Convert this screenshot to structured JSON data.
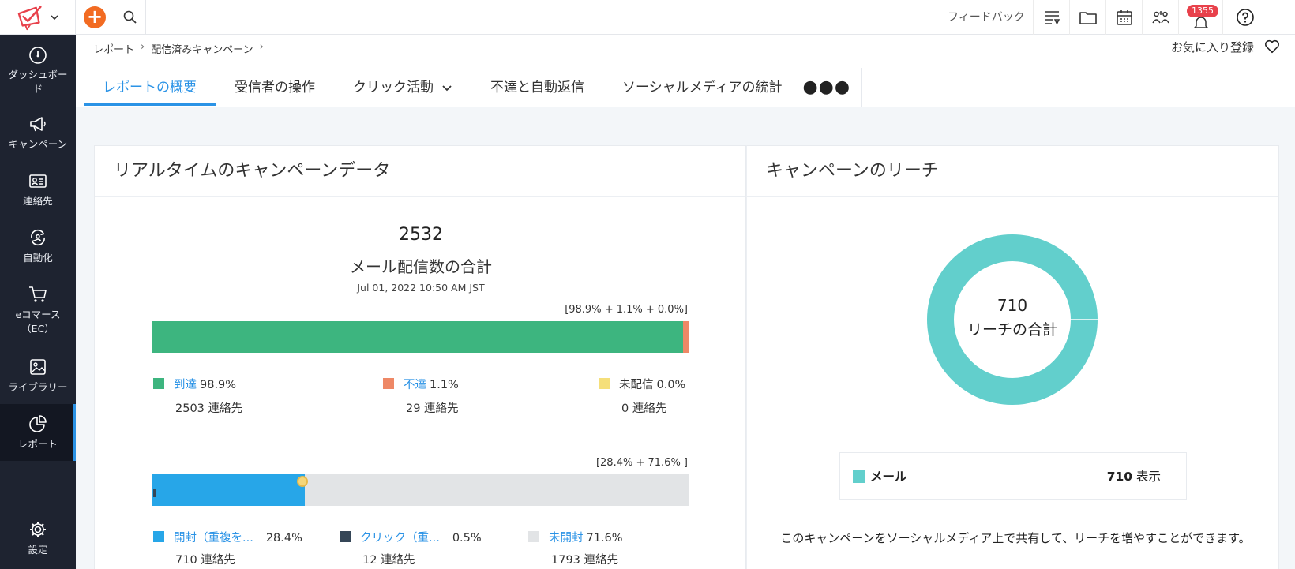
{
  "sidebar": {
    "items": [
      {
        "label": "ダッシュボード",
        "icon": "gauge-icon"
      },
      {
        "label": "キャンペーン",
        "icon": "megaphone-icon"
      },
      {
        "label": "連絡先",
        "icon": "contact-card-icon"
      },
      {
        "label": "自動化",
        "icon": "automation-icon"
      },
      {
        "label": "eコマース（EC）",
        "icon": "cart-icon"
      },
      {
        "label": "ライブラリー",
        "icon": "image-library-icon"
      },
      {
        "label": "レポート",
        "icon": "pie-chart-icon"
      },
      {
        "label": "設定",
        "icon": "gear-icon"
      }
    ],
    "active": "レポート"
  },
  "topbar": {
    "feedback": "フィードバック",
    "notification_count": "1355"
  },
  "breadcrumb": [
    "レポート",
    "配信済みキャンペーン"
  ],
  "favorite_label": "お気に入り登録",
  "tabs": [
    {
      "label": "レポートの概要",
      "active": true
    },
    {
      "label": "受信者の操作"
    },
    {
      "label": "クリック活動"
    },
    {
      "label": "不達と自動返信"
    },
    {
      "label": "ソーシャルメディアの統計"
    }
  ],
  "tabs_more": "●●●",
  "realtime": {
    "title": "リアルタイムのキャンペーンデータ",
    "total": "2532",
    "total_label": "メール配信数の合計",
    "date": "Jul 01, 2022 10:50 AM JST",
    "delivery_note": "[98.9% + 1.1% + 0.0%]",
    "delivery": [
      {
        "name": "到達",
        "pct": "98.9%",
        "value": 98.9,
        "contacts": "2503 連絡先",
        "color": "#3db57f",
        "link": true
      },
      {
        "name": "不達",
        "pct": "1.1%",
        "value": 1.1,
        "contacts": "29 連絡先",
        "color": "#ee8866",
        "link": true
      },
      {
        "name": "未配信",
        "pct": "0.0%",
        "value": 0.0,
        "contacts": "0 連絡先",
        "color": "#f5df7a",
        "link": false
      }
    ],
    "open_note": "[28.4% + 71.6% ]",
    "opens": [
      {
        "name": "開封（重複を...",
        "pct": "28.4%",
        "value": 28.4,
        "contacts": "710 連絡先",
        "color": "#27a6e8",
        "link": true
      },
      {
        "name": "クリック（重...",
        "pct": "0.5%",
        "value": 0.5,
        "contacts": "12 連絡先",
        "color": "#354657",
        "link": true
      },
      {
        "name": "未開封",
        "pct": "71.6%",
        "value": 71.6,
        "contacts": "1793 連絡先",
        "color": "#e2e4e6",
        "link": true
      }
    ]
  },
  "reach": {
    "title": "キャンペーンのリーチ",
    "total": "710",
    "total_label": "リーチの合計",
    "donut_color": "#62cfcc",
    "legend_name": "メール",
    "legend_value": "710",
    "legend_unit": "表示",
    "share_text": "このキャンペーンをソーシャルメディア上で共有して、リーチを増やすことができます。"
  }
}
